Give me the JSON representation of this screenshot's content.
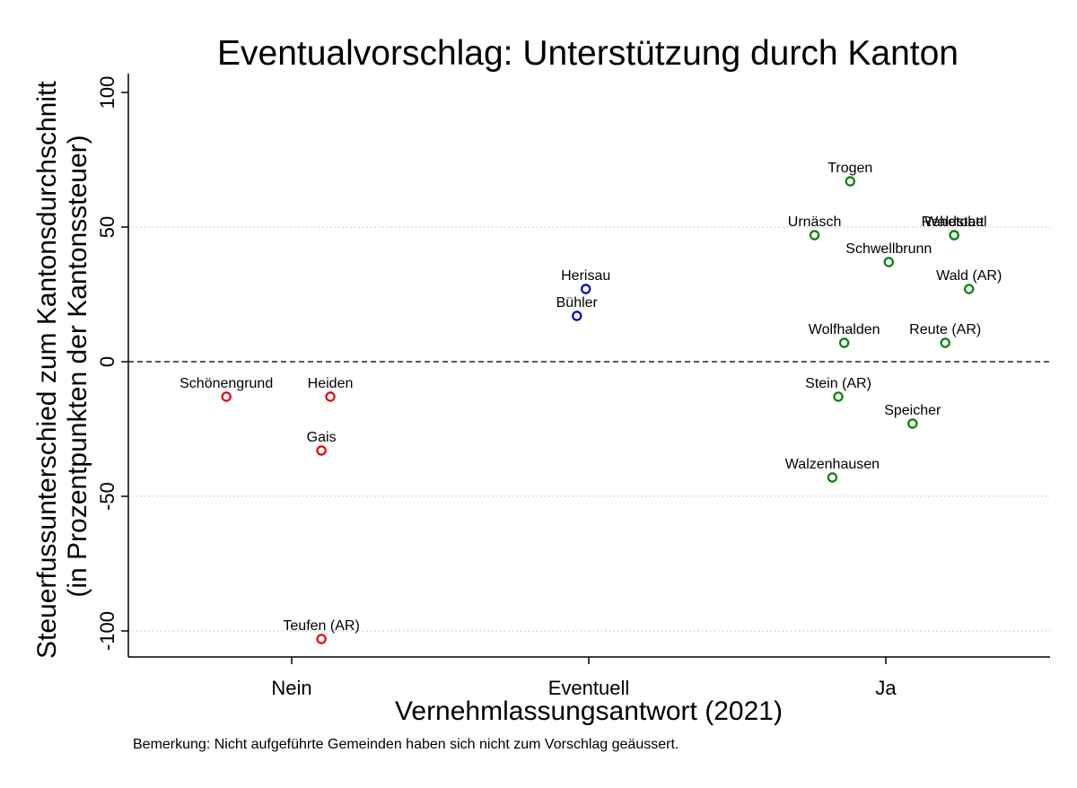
{
  "chart_data": {
    "type": "scatter",
    "title": "Eventualvorschlag: Unterstützung durch Kanton",
    "xlabel": "Vernehmlassungsantwort (2021)",
    "ylabel": [
      "Steuerfussunterschied zum Kantonsdurchschnitt",
      "(in Prozentpunkten der Kantonssteuer)"
    ],
    "note": "Bemerkung: Nicht aufgeführte Gemeinden haben sich nicht zum Vorschlag geäussert.",
    "categories": [
      "Nein",
      "Eventuell",
      "Ja"
    ],
    "xlim": [
      -0.5,
      2.55
    ],
    "ylim": [
      -110,
      110
    ],
    "yticks": [
      100,
      50,
      0,
      -50,
      -100
    ],
    "ytick_labels": [
      "100",
      "50",
      "0",
      "-50",
      "-100"
    ],
    "gridlines_y": [
      50,
      -50,
      -100
    ],
    "refline_y": 0,
    "colors": {
      "Nein": "#e8000b",
      "Eventuell": "#0000c8",
      "Ja": "#008000"
    },
    "series": [
      {
        "name": "Nein",
        "points": [
          {
            "label": "Schönengrund",
            "x": -0.22,
            "y": -13
          },
          {
            "label": "Heiden",
            "x": 0.13,
            "y": -13
          },
          {
            "label": "Gais",
            "x": 0.1,
            "y": -33
          },
          {
            "label": "Teufen (AR)",
            "x": 0.1,
            "y": -103
          }
        ]
      },
      {
        "name": "Eventuell",
        "points": [
          {
            "label": "Herisau",
            "x": 0.99,
            "y": 27
          },
          {
            "label": "Bühler",
            "x": 0.96,
            "y": 17
          }
        ]
      },
      {
        "name": "Ja",
        "points": [
          {
            "label": "Trogen",
            "x": 1.88,
            "y": 67
          },
          {
            "label": "Urnäsch",
            "x": 1.76,
            "y": 47
          },
          {
            "label": "Waldstatt",
            "x": 2.23,
            "y": 47
          },
          {
            "label": "Schwellbrunn",
            "x": 2.01,
            "y": 37
          },
          {
            "label": "Rehetobel",
            "x": 2.23,
            "y": 47
          },
          {
            "label": "Wald (AR)",
            "x": 2.28,
            "y": 27
          },
          {
            "label": "Reute (AR)",
            "x": 2.2,
            "y": 7
          },
          {
            "label": "Wolfhalden",
            "x": 1.86,
            "y": 7
          },
          {
            "label": "Stein (AR)",
            "x": 1.84,
            "y": -13
          },
          {
            "label": "Speicher",
            "x": 2.09,
            "y": -23
          },
          {
            "label": "Walzenhausen",
            "x": 1.82,
            "y": -43
          }
        ]
      }
    ]
  }
}
